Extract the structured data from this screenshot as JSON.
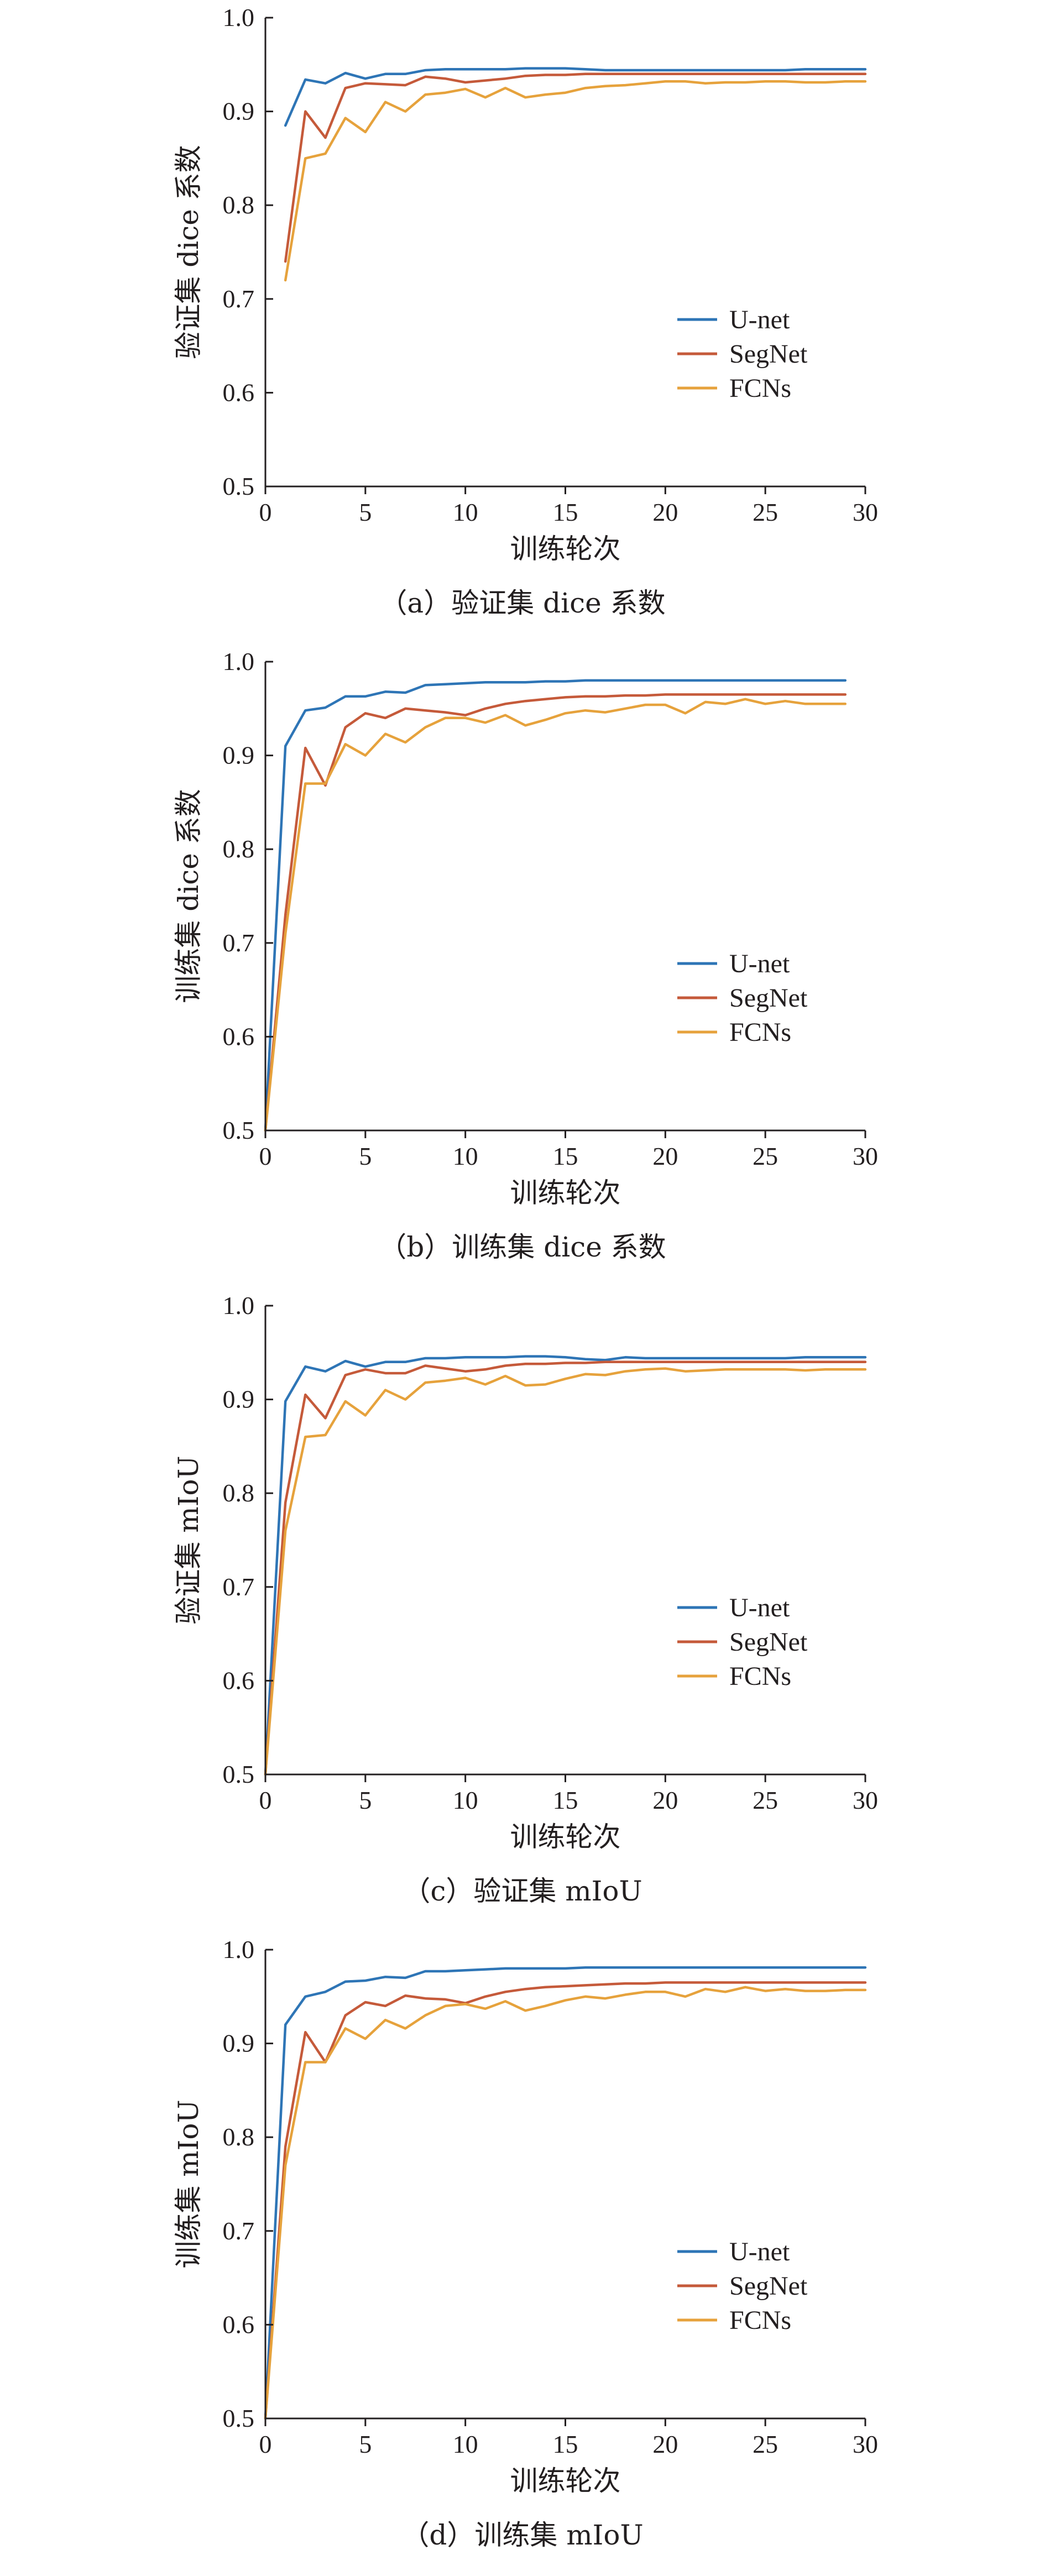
{
  "chart_data": [
    {
      "type": "line",
      "caption": "（a）验证集 dice 系数",
      "xlabel": "训练轮次",
      "ylabel": "验证集 dice 系数",
      "xlim": [
        0,
        30
      ],
      "ylim": [
        0.5,
        1.0
      ],
      "xticks": [
        0,
        5,
        10,
        15,
        20,
        25,
        30
      ],
      "yticks": [
        0.5,
        0.6,
        0.7,
        0.8,
        0.9,
        1.0
      ],
      "grid": false,
      "legend_position": "right",
      "x": [
        1,
        2,
        3,
        4,
        5,
        6,
        7,
        8,
        9,
        10,
        11,
        12,
        13,
        14,
        15,
        16,
        17,
        18,
        19,
        20,
        21,
        22,
        23,
        24,
        25,
        26,
        27,
        28,
        29,
        30
      ],
      "series": [
        {
          "name": "U-net",
          "color": "#2e75b6",
          "values": [
            0.885,
            0.934,
            0.93,
            0.941,
            0.935,
            0.94,
            0.94,
            0.944,
            0.945,
            0.945,
            0.945,
            0.945,
            0.946,
            0.946,
            0.946,
            0.945,
            0.944,
            0.944,
            0.944,
            0.944,
            0.944,
            0.944,
            0.944,
            0.944,
            0.944,
            0.944,
            0.945,
            0.945,
            0.945,
            0.945
          ]
        },
        {
          "name": "SegNet",
          "color": "#c55a3a",
          "values": [
            0.74,
            0.9,
            0.872,
            0.925,
            0.93,
            0.929,
            0.928,
            0.937,
            0.935,
            0.931,
            0.933,
            0.935,
            0.938,
            0.939,
            0.939,
            0.94,
            0.94,
            0.94,
            0.94,
            0.94,
            0.94,
            0.94,
            0.94,
            0.94,
            0.94,
            0.94,
            0.94,
            0.94,
            0.94,
            0.94
          ]
        },
        {
          "name": "FCNs",
          "color": "#e6a23c",
          "values": [
            0.72,
            0.85,
            0.855,
            0.893,
            0.878,
            0.91,
            0.9,
            0.918,
            0.92,
            0.924,
            0.915,
            0.925,
            0.915,
            0.918,
            0.92,
            0.925,
            0.927,
            0.928,
            0.93,
            0.932,
            0.932,
            0.93,
            0.931,
            0.931,
            0.932,
            0.932,
            0.931,
            0.931,
            0.932,
            0.932
          ]
        }
      ]
    },
    {
      "type": "line",
      "caption": "（b）训练集 dice 系数",
      "xlabel": "训练轮次",
      "ylabel": "训练集 dice 系数",
      "xlim": [
        0,
        30
      ],
      "ylim": [
        0.5,
        1.0
      ],
      "xticks": [
        0,
        5,
        10,
        15,
        20,
        25,
        30
      ],
      "yticks": [
        0.5,
        0.6,
        0.7,
        0.8,
        0.9,
        1.0
      ],
      "grid": false,
      "legend_position": "right",
      "x": [
        0,
        1,
        2,
        3,
        4,
        5,
        6,
        7,
        8,
        9,
        10,
        11,
        12,
        13,
        14,
        15,
        16,
        17,
        18,
        19,
        20,
        21,
        22,
        23,
        24,
        25,
        26,
        27,
        28,
        29
      ],
      "series": [
        {
          "name": "U-net",
          "color": "#2e75b6",
          "values": [
            0.5,
            0.91,
            0.948,
            0.951,
            0.963,
            0.963,
            0.968,
            0.967,
            0.975,
            0.976,
            0.977,
            0.978,
            0.978,
            0.978,
            0.979,
            0.979,
            0.98,
            0.98,
            0.98,
            0.98,
            0.98,
            0.98,
            0.98,
            0.98,
            0.98,
            0.98,
            0.98,
            0.98,
            0.98,
            0.98
          ]
        },
        {
          "name": "SegNet",
          "color": "#c55a3a",
          "values": [
            0.5,
            0.73,
            0.908,
            0.868,
            0.93,
            0.945,
            0.94,
            0.95,
            0.948,
            0.946,
            0.943,
            0.95,
            0.955,
            0.958,
            0.96,
            0.962,
            0.963,
            0.963,
            0.964,
            0.964,
            0.965,
            0.965,
            0.965,
            0.965,
            0.965,
            0.965,
            0.965,
            0.965,
            0.965,
            0.965
          ]
        },
        {
          "name": "FCNs",
          "color": "#e6a23c",
          "values": [
            0.5,
            0.71,
            0.87,
            0.87,
            0.912,
            0.9,
            0.923,
            0.914,
            0.93,
            0.94,
            0.94,
            0.935,
            0.943,
            0.932,
            0.938,
            0.945,
            0.948,
            0.946,
            0.95,
            0.954,
            0.954,
            0.945,
            0.957,
            0.955,
            0.96,
            0.955,
            0.958,
            0.955,
            0.955,
            0.955
          ]
        }
      ]
    },
    {
      "type": "line",
      "caption": "（c）验证集 mIoU",
      "xlabel": "训练轮次",
      "ylabel": "验证集 mIoU",
      "xlim": [
        0,
        30
      ],
      "ylim": [
        0.5,
        1.0
      ],
      "xticks": [
        0,
        5,
        10,
        15,
        20,
        25,
        30
      ],
      "yticks": [
        0.5,
        0.6,
        0.7,
        0.8,
        0.9,
        1.0
      ],
      "grid": false,
      "legend_position": "right",
      "x": [
        0,
        1,
        2,
        3,
        4,
        5,
        6,
        7,
        8,
        9,
        10,
        11,
        12,
        13,
        14,
        15,
        16,
        17,
        18,
        19,
        20,
        21,
        22,
        23,
        24,
        25,
        26,
        27,
        28,
        29,
        30
      ],
      "series": [
        {
          "name": "U-net",
          "color": "#2e75b6",
          "values": [
            0.5,
            0.898,
            0.935,
            0.93,
            0.941,
            0.935,
            0.94,
            0.94,
            0.944,
            0.944,
            0.945,
            0.945,
            0.945,
            0.946,
            0.946,
            0.945,
            0.943,
            0.942,
            0.945,
            0.944,
            0.944,
            0.944,
            0.944,
            0.944,
            0.944,
            0.944,
            0.944,
            0.945,
            0.945,
            0.945,
            0.945
          ]
        },
        {
          "name": "SegNet",
          "color": "#c55a3a",
          "values": [
            0.5,
            0.79,
            0.905,
            0.88,
            0.926,
            0.932,
            0.928,
            0.928,
            0.936,
            0.933,
            0.93,
            0.932,
            0.936,
            0.938,
            0.938,
            0.939,
            0.939,
            0.94,
            0.94,
            0.94,
            0.94,
            0.94,
            0.94,
            0.94,
            0.94,
            0.94,
            0.94,
            0.94,
            0.94,
            0.94,
            0.94
          ]
        },
        {
          "name": "FCNs",
          "color": "#e6a23c",
          "values": [
            0.5,
            0.76,
            0.86,
            0.862,
            0.898,
            0.883,
            0.91,
            0.9,
            0.918,
            0.92,
            0.923,
            0.916,
            0.925,
            0.915,
            0.916,
            0.922,
            0.927,
            0.926,
            0.93,
            0.932,
            0.933,
            0.93,
            0.931,
            0.932,
            0.932,
            0.932,
            0.932,
            0.931,
            0.932,
            0.932,
            0.932
          ]
        }
      ]
    },
    {
      "type": "line",
      "caption": "（d）训练集 mIoU",
      "xlabel": "训练轮次",
      "ylabel": "训练集 mIoU",
      "xlim": [
        0,
        30
      ],
      "ylim": [
        0.5,
        1.0
      ],
      "xticks": [
        0,
        5,
        10,
        15,
        20,
        25,
        30
      ],
      "yticks": [
        0.5,
        0.6,
        0.7,
        0.8,
        0.9,
        1.0
      ],
      "grid": false,
      "legend_position": "right",
      "x": [
        0,
        1,
        2,
        3,
        4,
        5,
        6,
        7,
        8,
        9,
        10,
        11,
        12,
        13,
        14,
        15,
        16,
        17,
        18,
        19,
        20,
        21,
        22,
        23,
        24,
        25,
        26,
        27,
        28,
        29,
        30
      ],
      "series": [
        {
          "name": "U-net",
          "color": "#2e75b6",
          "values": [
            0.5,
            0.92,
            0.95,
            0.955,
            0.966,
            0.967,
            0.971,
            0.97,
            0.977,
            0.977,
            0.978,
            0.979,
            0.98,
            0.98,
            0.98,
            0.98,
            0.981,
            0.981,
            0.981,
            0.981,
            0.981,
            0.981,
            0.981,
            0.981,
            0.981,
            0.981,
            0.981,
            0.981,
            0.981,
            0.981,
            0.981
          ]
        },
        {
          "name": "SegNet",
          "color": "#c55a3a",
          "values": [
            0.5,
            0.79,
            0.912,
            0.88,
            0.93,
            0.944,
            0.94,
            0.951,
            0.948,
            0.947,
            0.943,
            0.95,
            0.955,
            0.958,
            0.96,
            0.961,
            0.962,
            0.963,
            0.964,
            0.964,
            0.965,
            0.965,
            0.965,
            0.965,
            0.965,
            0.965,
            0.965,
            0.965,
            0.965,
            0.965,
            0.965
          ]
        },
        {
          "name": "FCNs",
          "color": "#e6a23c",
          "values": [
            0.5,
            0.77,
            0.88,
            0.88,
            0.916,
            0.905,
            0.925,
            0.916,
            0.93,
            0.94,
            0.942,
            0.937,
            0.945,
            0.935,
            0.94,
            0.946,
            0.95,
            0.948,
            0.952,
            0.955,
            0.955,
            0.95,
            0.958,
            0.955,
            0.96,
            0.956,
            0.958,
            0.956,
            0.956,
            0.957,
            0.957
          ]
        }
      ]
    }
  ]
}
